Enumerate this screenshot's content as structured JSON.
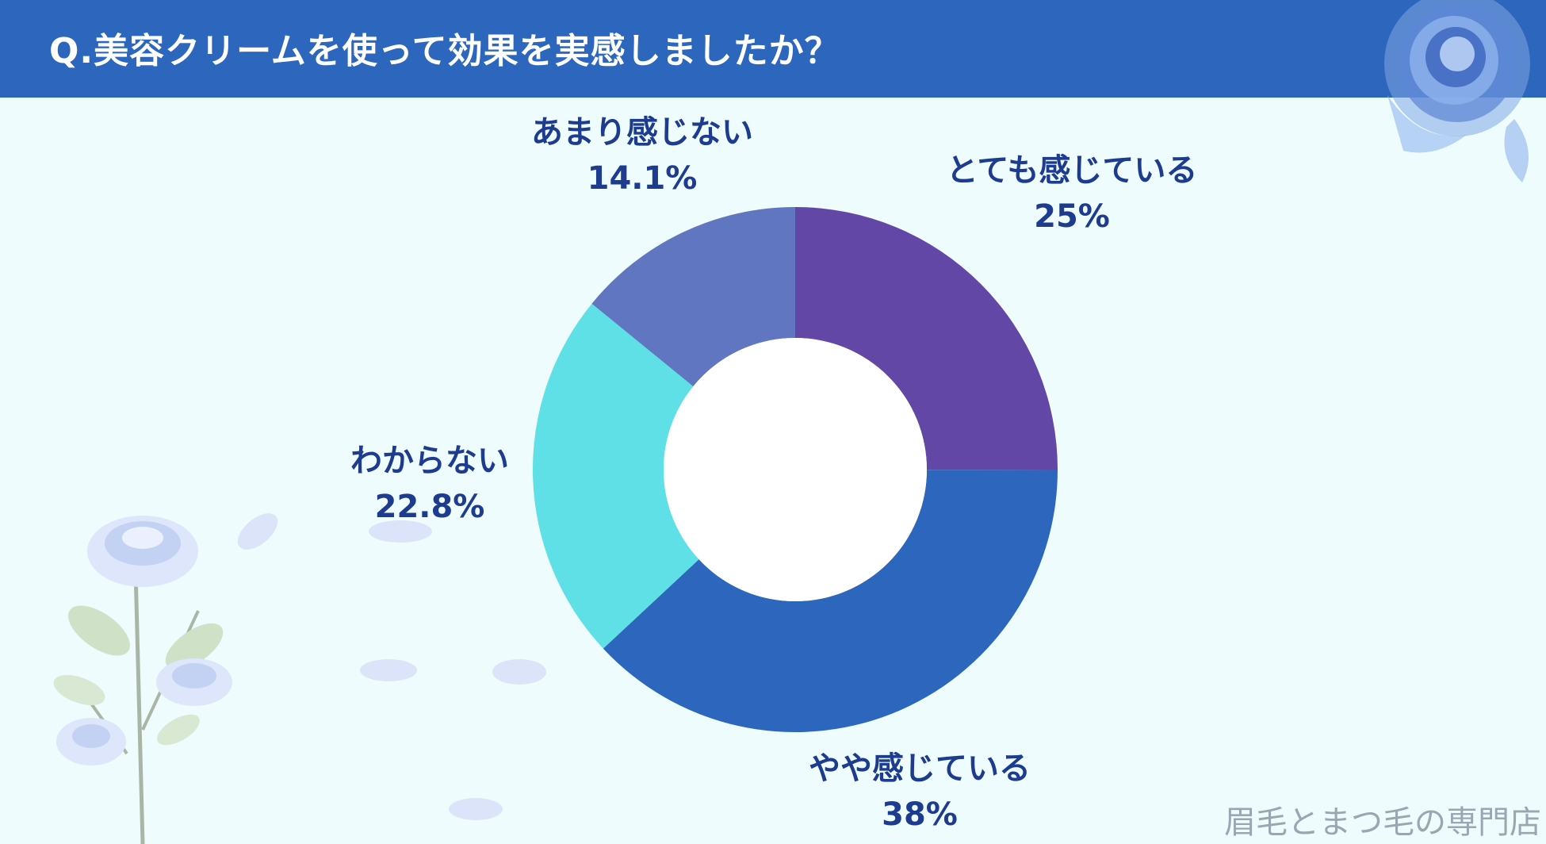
{
  "title": "Q.美容クリームを使って効果を実感しましたか？",
  "watermark": "眉毛とまつ毛の専門店",
  "colors": {
    "header": "#2d67bd",
    "background": "#eefcfd",
    "label": "#1d3c8f"
  },
  "chart_data": {
    "type": "pie",
    "donut": true,
    "start": "12 o'clock",
    "direction": "clockwise",
    "slices": [
      {
        "label": "とても感じている",
        "value": 25,
        "display": "25%",
        "color": "#6347a7"
      },
      {
        "label": "やや感じている",
        "value": 38,
        "display": "38%",
        "color": "#2d67bd"
      },
      {
        "label": "わからない",
        "value": 22.8,
        "display": "22.8%",
        "color": "#5ee0e6"
      },
      {
        "label": "あまり感じない",
        "value": 14.1,
        "display": "14.1%",
        "color": "#6176c1"
      }
    ]
  }
}
